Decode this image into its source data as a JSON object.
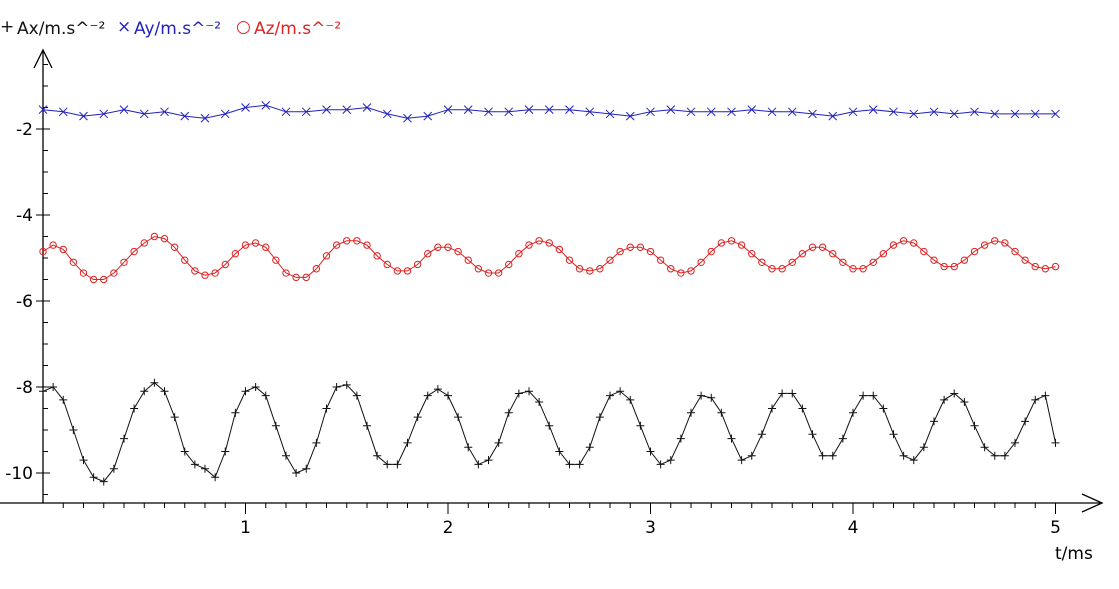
{
  "chart_data": {
    "type": "line",
    "xlabel": "t/ms",
    "ylabel": "",
    "xlim": [
      0,
      5.2
    ],
    "ylim": [
      -10.6,
      0.5
    ],
    "xticks": [
      1,
      2,
      3,
      4,
      5
    ],
    "yticks": [
      -2,
      -4,
      -6,
      -8,
      -10
    ],
    "grid": false,
    "legend_position": "top-left",
    "series": [
      {
        "name": "Ax/m.s^⁻²",
        "color": "#111111",
        "marker": "+",
        "x": [
          0.0,
          0.05,
          0.1,
          0.15,
          0.2,
          0.25,
          0.3,
          0.35,
          0.4,
          0.45,
          0.5,
          0.55,
          0.6,
          0.65,
          0.7,
          0.75,
          0.8,
          0.85,
          0.9,
          0.95,
          1.0,
          1.05,
          1.1,
          1.15,
          1.2,
          1.25,
          1.3,
          1.35,
          1.4,
          1.45,
          1.5,
          1.55,
          1.6,
          1.65,
          1.7,
          1.75,
          1.8,
          1.85,
          1.9,
          1.95,
          2.0,
          2.05,
          2.1,
          2.15,
          2.2,
          2.25,
          2.3,
          2.35,
          2.4,
          2.45,
          2.5,
          2.55,
          2.6,
          2.65,
          2.7,
          2.75,
          2.8,
          2.85,
          2.9,
          2.95,
          3.0,
          3.05,
          3.1,
          3.15,
          3.2,
          3.25,
          3.3,
          3.35,
          3.4,
          3.45,
          3.5,
          3.55,
          3.6,
          3.65,
          3.7,
          3.75,
          3.8,
          3.85,
          3.9,
          3.95,
          4.0,
          4.05,
          4.1,
          4.15,
          4.2,
          4.25,
          4.3,
          4.35,
          4.4,
          4.45,
          4.5,
          4.55,
          4.6,
          4.65,
          4.7,
          4.75,
          4.8,
          4.85,
          4.9,
          4.95,
          5.0
        ],
        "y": [
          -8.1,
          -8.0,
          -8.3,
          -9.0,
          -9.7,
          -10.1,
          -10.2,
          -9.9,
          -9.2,
          -8.5,
          -8.1,
          -7.9,
          -8.1,
          -8.7,
          -9.5,
          -9.8,
          -9.9,
          -10.1,
          -9.5,
          -8.6,
          -8.1,
          -8.0,
          -8.2,
          -8.9,
          -9.6,
          -10.0,
          -9.9,
          -9.3,
          -8.5,
          -8.0,
          -7.95,
          -8.2,
          -8.9,
          -9.6,
          -9.8,
          -9.8,
          -9.3,
          -8.7,
          -8.2,
          -8.05,
          -8.2,
          -8.7,
          -9.4,
          -9.8,
          -9.7,
          -9.3,
          -8.6,
          -8.15,
          -8.1,
          -8.35,
          -8.9,
          -9.5,
          -9.8,
          -9.8,
          -9.4,
          -8.7,
          -8.2,
          -8.1,
          -8.3,
          -8.9,
          -9.5,
          -9.8,
          -9.7,
          -9.2,
          -8.6,
          -8.2,
          -8.25,
          -8.6,
          -9.2,
          -9.7,
          -9.6,
          -9.1,
          -8.5,
          -8.15,
          -8.15,
          -8.5,
          -9.1,
          -9.6,
          -9.6,
          -9.2,
          -8.6,
          -8.2,
          -8.2,
          -8.5,
          -9.1,
          -9.6,
          -9.7,
          -9.4,
          -8.8,
          -8.3,
          -8.15,
          -8.35,
          -8.9,
          -9.4,
          -9.6,
          -9.6,
          -9.3,
          -8.8,
          -8.3,
          -8.2,
          -9.3
        ]
      },
      {
        "name": "Ay/m.s^⁻²",
        "color": "#2222bb",
        "marker": "x",
        "x": [
          0.0,
          0.1,
          0.2,
          0.3,
          0.4,
          0.5,
          0.6,
          0.7,
          0.8,
          0.9,
          1.0,
          1.1,
          1.2,
          1.3,
          1.4,
          1.5,
          1.6,
          1.7,
          1.8,
          1.9,
          2.0,
          2.1,
          2.2,
          2.3,
          2.4,
          2.5,
          2.6,
          2.7,
          2.8,
          2.9,
          3.0,
          3.1,
          3.2,
          3.3,
          3.4,
          3.5,
          3.6,
          3.7,
          3.8,
          3.9,
          4.0,
          4.1,
          4.2,
          4.3,
          4.4,
          4.5,
          4.6,
          4.7,
          4.8,
          4.9,
          5.0
        ],
        "y": [
          -1.55,
          -1.6,
          -1.7,
          -1.65,
          -1.55,
          -1.65,
          -1.6,
          -1.7,
          -1.75,
          -1.65,
          -1.5,
          -1.45,
          -1.6,
          -1.6,
          -1.55,
          -1.55,
          -1.5,
          -1.65,
          -1.75,
          -1.7,
          -1.55,
          -1.55,
          -1.6,
          -1.6,
          -1.55,
          -1.55,
          -1.55,
          -1.6,
          -1.65,
          -1.7,
          -1.6,
          -1.55,
          -1.6,
          -1.6,
          -1.6,
          -1.55,
          -1.6,
          -1.6,
          -1.65,
          -1.7,
          -1.6,
          -1.55,
          -1.6,
          -1.65,
          -1.6,
          -1.65,
          -1.6,
          -1.65,
          -1.65,
          -1.65,
          -1.65
        ]
      },
      {
        "name": "Az/m.s^⁻²",
        "color": "#dd2222",
        "marker": "o",
        "x": [
          0.0,
          0.05,
          0.1,
          0.15,
          0.2,
          0.25,
          0.3,
          0.35,
          0.4,
          0.45,
          0.5,
          0.55,
          0.6,
          0.65,
          0.7,
          0.75,
          0.8,
          0.85,
          0.9,
          0.95,
          1.0,
          1.05,
          1.1,
          1.15,
          1.2,
          1.25,
          1.3,
          1.35,
          1.4,
          1.45,
          1.5,
          1.55,
          1.6,
          1.65,
          1.7,
          1.75,
          1.8,
          1.85,
          1.9,
          1.95,
          2.0,
          2.05,
          2.1,
          2.15,
          2.2,
          2.25,
          2.3,
          2.35,
          2.4,
          2.45,
          2.5,
          2.55,
          2.6,
          2.65,
          2.7,
          2.75,
          2.8,
          2.85,
          2.9,
          2.95,
          3.0,
          3.05,
          3.1,
          3.15,
          3.2,
          3.25,
          3.3,
          3.35,
          3.4,
          3.45,
          3.5,
          3.55,
          3.6,
          3.65,
          3.7,
          3.75,
          3.8,
          3.85,
          3.9,
          3.95,
          4.0,
          4.05,
          4.1,
          4.15,
          4.2,
          4.25,
          4.3,
          4.35,
          4.4,
          4.45,
          4.5,
          4.55,
          4.6,
          4.65,
          4.7,
          4.75,
          4.8,
          4.85,
          4.9,
          4.95,
          5.0
        ],
        "y": [
          -4.85,
          -4.7,
          -4.8,
          -5.1,
          -5.35,
          -5.5,
          -5.5,
          -5.35,
          -5.1,
          -4.85,
          -4.65,
          -4.5,
          -4.55,
          -4.75,
          -5.05,
          -5.3,
          -5.4,
          -5.35,
          -5.15,
          -4.9,
          -4.7,
          -4.65,
          -4.75,
          -5.05,
          -5.35,
          -5.45,
          -5.45,
          -5.25,
          -4.95,
          -4.7,
          -4.6,
          -4.6,
          -4.7,
          -4.95,
          -5.15,
          -5.3,
          -5.3,
          -5.15,
          -4.9,
          -4.75,
          -4.75,
          -4.85,
          -5.05,
          -5.25,
          -5.35,
          -5.35,
          -5.15,
          -4.9,
          -4.7,
          -4.6,
          -4.65,
          -4.8,
          -5.05,
          -5.25,
          -5.3,
          -5.25,
          -5.05,
          -4.85,
          -4.75,
          -4.75,
          -4.85,
          -5.05,
          -5.25,
          -5.35,
          -5.3,
          -5.1,
          -4.85,
          -4.65,
          -4.6,
          -4.7,
          -4.9,
          -5.1,
          -5.25,
          -5.25,
          -5.1,
          -4.9,
          -4.75,
          -4.75,
          -4.9,
          -5.1,
          -5.25,
          -5.25,
          -5.1,
          -4.9,
          -4.7,
          -4.6,
          -4.65,
          -4.85,
          -5.05,
          -5.2,
          -5.2,
          -5.05,
          -4.85,
          -4.7,
          -4.6,
          -4.65,
          -4.85,
          -5.05,
          -5.2,
          -5.25,
          -5.2
        ]
      }
    ]
  }
}
